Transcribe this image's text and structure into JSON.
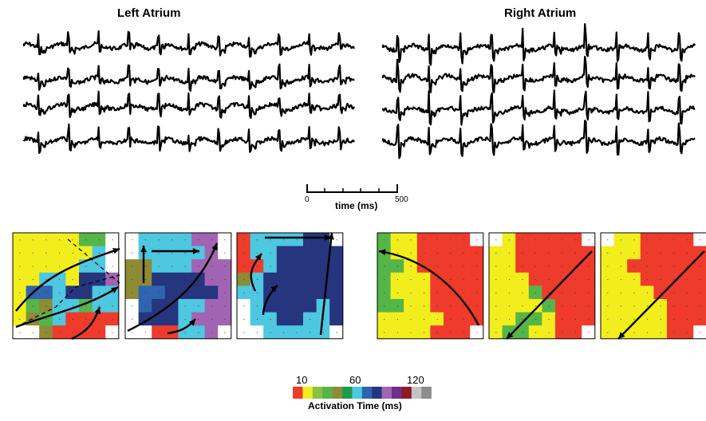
{
  "titles": {
    "left": "Left Atrium",
    "right": "Right Atrium"
  },
  "scale": {
    "start": "0",
    "end": "500",
    "label": "time (ms)"
  },
  "colorbar": {
    "ticks": [
      "10",
      "60",
      "120"
    ],
    "label": "Activation Time (ms)",
    "colors": [
      "#ee3b2b",
      "#f2ee1d",
      "#86c441",
      "#56b548",
      "#8e8b35",
      "#1d9a4a",
      "#4ec7e0",
      "#2f64b1",
      "#25357e",
      "#a164b3",
      "#6e2f8f",
      "#8c1c21",
      "#c4c4c4",
      "#8c8c8c"
    ]
  },
  "maps": [
    {
      "grid": [
        "YYYYYGGW",
        "YYYYYYCW",
        "YYYYYCCW",
        "YYCCYNNP",
        "YBBCNNCC",
        "YGOCCGCC",
        "YOGCRRRR",
        "WWORRRRW"
      ]
    },
    {
      "grid": [
        "WCCCCPPW",
        "WCCCCCPW",
        "OOCCCPPP",
        "OONNNNPP",
        "OBBNNNNP",
        "WBNNCCPP",
        "WNNNCPPP",
        "WWRRCCPW"
      ]
    },
    {
      "grid": [
        "RCCCCNNW",
        "RCCNNNNN",
        "RRCNNNNN",
        "OCNNNNNN",
        "CCNNNNNN",
        "WCNNNNCN",
        "WCCNNCCN",
        "WWCCCCCW"
      ]
    },
    {
      "grid": [
        "GYYRRRRW",
        "GYYRRRRR",
        "GGYRRRRR",
        "GYYYRRRR",
        "GYYYRRRR",
        "GGYYRRRR",
        "YYYYYRRR",
        "YYYYRRRW"
      ]
    },
    {
      "grid": [
        "WYRRRRRW",
        "YYRRRRRR",
        "YYRRRRRR",
        "YYYRRRRR",
        "YYYGRRRR",
        "YYYYGRRR",
        "YYGGYRRR",
        "YGGYYRRW"
      ]
    },
    {
      "grid": [
        "WYYRRRRW",
        "YYYRRRRR",
        "YYRRRRRR",
        "YYYRRRRR",
        "YYYYRRRR",
        "YYYYYRRR",
        "YYYYYRRR",
        "YYYYYRRW"
      ]
    }
  ]
}
